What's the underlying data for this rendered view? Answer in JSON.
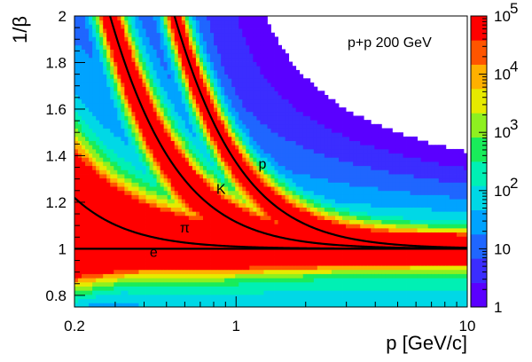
{
  "chart_data": {
    "type": "heatmap",
    "title": "",
    "xlabel": "p [GeV/c]",
    "ylabel": "1/β",
    "xscale": "log",
    "xlim": [
      0.2,
      10
    ],
    "ylim": [
      0.75,
      2.0
    ],
    "x_ticks": [
      {
        "value": 0.2,
        "label": "0.2"
      },
      {
        "value": 1,
        "label": "1"
      },
      {
        "value": 10,
        "label": "10"
      }
    ],
    "y_ticks": [
      {
        "value": 0.8,
        "label": "0.8"
      },
      {
        "value": 1.0,
        "label": "1"
      },
      {
        "value": 1.2,
        "label": "1.2"
      },
      {
        "value": 1.4,
        "label": "1.4"
      },
      {
        "value": 1.6,
        "label": "1.6"
      },
      {
        "value": 1.8,
        "label": "1.8"
      },
      {
        "value": 2.0,
        "label": "2"
      }
    ],
    "colorbar": {
      "scale": "log",
      "range": [
        1,
        100000
      ],
      "ticks": [
        {
          "value": 1,
          "base": "1",
          "exp": ""
        },
        {
          "value": 10,
          "base": "10",
          "exp": ""
        },
        {
          "value": 100,
          "base": "10",
          "exp": "2"
        },
        {
          "value": 1000,
          "base": "10",
          "exp": "3"
        },
        {
          "value": 10000,
          "base": "10",
          "exp": "4"
        },
        {
          "value": 100000,
          "base": "10",
          "exp": "5"
        }
      ],
      "palette": [
        "#5a00ff",
        "#3b2dff",
        "#1f66ff",
        "#00a3ff",
        "#00d8e6",
        "#00f0b4",
        "#19ec5a",
        "#8ef020",
        "#e6ea00",
        "#ffb000",
        "#ff5500",
        "#ff0000"
      ]
    },
    "annotation": "p+p 200 GeV",
    "curves": [
      {
        "label": "e",
        "mass": 0.000511,
        "label_at": {
          "x": 0.44,
          "y": 0.965
        }
      },
      {
        "label": "π",
        "mass": 0.13957,
        "label_at": {
          "x": 0.6,
          "y": 1.07
        }
      },
      {
        "label": "K",
        "mass": 0.49368,
        "label_at": {
          "x": 0.86,
          "y": 1.235
        }
      },
      {
        "label": "p",
        "mass": 0.93827,
        "label_at": {
          "x": 1.3,
          "y": 1.345
        }
      }
    ]
  }
}
